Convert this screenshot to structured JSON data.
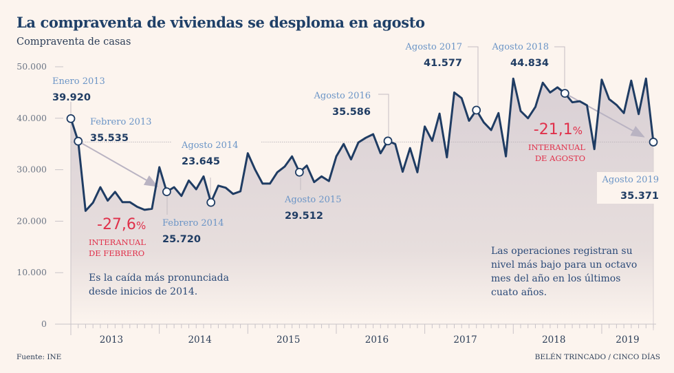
{
  "header": {
    "title": "La compraventa de viviendas se desploma en agosto",
    "subtitle": "Compraventa de casas"
  },
  "footer": {
    "source": "Fuente: INE",
    "credit": "BELÉN TRINCADO / CINCO DÍAS"
  },
  "colors": {
    "background": "#fcf4ee",
    "line": "#1f3c63",
    "area": "#ddd3d6",
    "highlight": "#e0304a",
    "annotation_label": "#6a94c6",
    "arrow": "#b9b3c2"
  },
  "chart_data": {
    "type": "area",
    "title": "La compraventa de viviendas se desploma en agosto",
    "subtitle": "Compraventa de casas",
    "xlabel": "",
    "ylabel": "Compraventa de casas",
    "ylim": [
      0,
      50000
    ],
    "yticks": [
      0,
      10000,
      20000,
      30000,
      40000,
      50000
    ],
    "ytick_labels": [
      "0",
      "10.000",
      "20.000",
      "30.000",
      "40.000",
      "50.000"
    ],
    "x_start": "2013-01",
    "x_end": "2019-08",
    "year_labels": [
      "2013",
      "2014",
      "2015",
      "2016",
      "2017",
      "2018",
      "2019"
    ],
    "grid": false,
    "reference_line": 35371,
    "series": [
      {
        "name": "Compraventa de casas",
        "months": [
          "2013-01",
          "2013-02",
          "2013-03",
          "2013-04",
          "2013-05",
          "2013-06",
          "2013-07",
          "2013-08",
          "2013-09",
          "2013-10",
          "2013-11",
          "2013-12",
          "2014-01",
          "2014-02",
          "2014-03",
          "2014-04",
          "2014-05",
          "2014-06",
          "2014-07",
          "2014-08",
          "2014-09",
          "2014-10",
          "2014-11",
          "2014-12",
          "2015-01",
          "2015-02",
          "2015-03",
          "2015-04",
          "2015-05",
          "2015-06",
          "2015-07",
          "2015-08",
          "2015-09",
          "2015-10",
          "2015-11",
          "2015-12",
          "2016-01",
          "2016-02",
          "2016-03",
          "2016-04",
          "2016-05",
          "2016-06",
          "2016-07",
          "2016-08",
          "2016-09",
          "2016-10",
          "2016-11",
          "2016-12",
          "2017-01",
          "2017-02",
          "2017-03",
          "2017-04",
          "2017-05",
          "2017-06",
          "2017-07",
          "2017-08",
          "2017-09",
          "2017-10",
          "2017-11",
          "2017-12",
          "2018-01",
          "2018-02",
          "2018-03",
          "2018-04",
          "2018-05",
          "2018-06",
          "2018-07",
          "2018-08",
          "2018-09",
          "2018-10",
          "2018-11",
          "2018-12",
          "2019-01",
          "2019-02",
          "2019-03",
          "2019-04",
          "2019-05",
          "2019-06",
          "2019-07",
          "2019-08"
        ],
        "values": [
          39920,
          35535,
          22000,
          23600,
          26600,
          24000,
          25700,
          23700,
          23700,
          22800,
          22200,
          22400,
          30500,
          25720,
          26600,
          24900,
          27900,
          26200,
          28700,
          23645,
          26900,
          26500,
          25300,
          25800,
          33200,
          30000,
          27300,
          27300,
          29500,
          30600,
          32600,
          29512,
          30800,
          27600,
          28700,
          27800,
          32600,
          35000,
          32000,
          35300,
          36200,
          36900,
          33200,
          35586,
          35000,
          29600,
          34200,
          29500,
          38400,
          35600,
          40900,
          32400,
          45000,
          43900,
          39500,
          41577,
          39200,
          37700,
          41000,
          32600,
          47700,
          41400,
          40000,
          42200,
          46900,
          45000,
          46000,
          44834,
          43100,
          43300,
          42500,
          34000,
          47500,
          43700,
          42600,
          41000,
          47300,
          40800,
          47700,
          35371
        ]
      }
    ],
    "annotations": [
      {
        "label": "Enero 2013",
        "value": "39.920",
        "index": 0
      },
      {
        "label": "Febrero 2013",
        "value": "35.535",
        "index": 1
      },
      {
        "label": "Febrero 2014",
        "value": "25.720",
        "index": 13
      },
      {
        "label": "Agosto 2014",
        "value": "23.645",
        "index": 19
      },
      {
        "label": "Agosto 2015",
        "value": "29.512",
        "index": 31
      },
      {
        "label": "Agosto 2016",
        "value": "35.586",
        "index": 43
      },
      {
        "label": "Agosto 2017",
        "value": "41.577",
        "index": 55
      },
      {
        "label": "Agosto 2018",
        "value": "44.834",
        "index": 67
      },
      {
        "label": "Agosto 2019",
        "value": "35.371",
        "index": 79
      }
    ],
    "changes": [
      {
        "pct": "-27,6",
        "suffix": "%",
        "line1": "INTERANUAL",
        "line2": "DE FEBRERO",
        "from_index": 1,
        "to_index": 13
      },
      {
        "pct": "-21,1",
        "suffix": "%",
        "line1": "INTERANUAL",
        "line2": "DE AGOSTO",
        "from_index": 67,
        "to_index": 79
      }
    ],
    "notes": [
      {
        "lines": [
          "Es la caída más pronunciada",
          "desde inicios de 2014."
        ]
      },
      {
        "lines": [
          "Las operaciones registran su",
          "nivel más bajo para un octavo",
          "mes del año en los últimos",
          "cuato años."
        ]
      }
    ]
  }
}
